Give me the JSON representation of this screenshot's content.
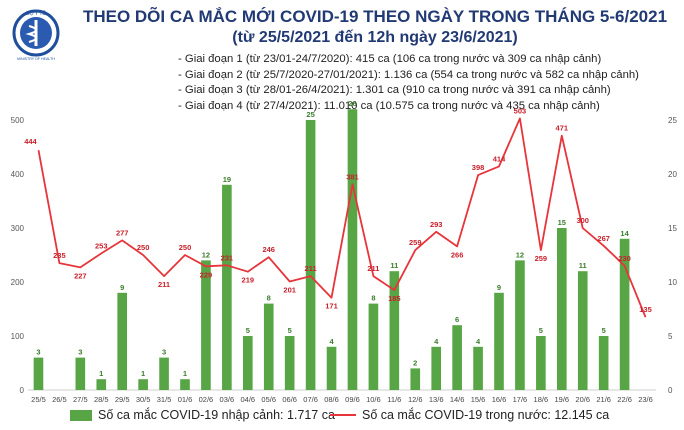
{
  "logo": {
    "top_text": "BỘ Y TẾ",
    "bottom_text": "MINISTRY OF HEALTH"
  },
  "title": "THEO DÕI CA MẮC MỚI COVID-19 THEO NGÀY TRONG THÁNG 5-6/2021",
  "subtitle": "(từ 25/5/2021 đến 12h ngày 23/6/2021)",
  "phases": [
    "- Giai đoạn 1 (từ 23/01-24/7/2020): 415 ca (106 ca trong nước và 309 ca nhập cảnh)",
    "- Giai đoạn 2 (từ 25/7/2020-27/01/2021): 1.136 ca (554 ca trong nước và 582 ca nhập cảnh)",
    "- Giai đoạn 3 (từ 28/01-26/4/2021): 1.301 ca (910 ca trong nước và 391 ca nhập cảnh)",
    "- Giai đoạn 4 (từ 27/4/2021): 11.010 ca (10.575 ca trong nước và 435 ca nhập cảnh)"
  ],
  "colors": {
    "bar": "#57a545",
    "line": "#e8343b",
    "title": "#223a74",
    "bar_label": "#3a7d2c",
    "line_label": "#c8202b"
  },
  "chart_data": {
    "type": "bar",
    "categories": [
      "25/5",
      "26/5",
      "27/5",
      "28/5",
      "29/5",
      "30/5",
      "31/5",
      "01/6",
      "02/6",
      "03/6",
      "04/6",
      "05/6",
      "06/6",
      "07/6",
      "08/6",
      "09/6",
      "10/6",
      "11/6",
      "12/6",
      "13/6",
      "14/6",
      "15/6",
      "16/6",
      "17/6",
      "18/6",
      "19/6",
      "20/6",
      "21/6",
      "22/6",
      "23/6"
    ],
    "left_axis": {
      "ylim": [
        0,
        500
      ],
      "ticks": [
        0,
        100,
        200,
        300,
        400,
        500
      ]
    },
    "right_axis": {
      "ylim": [
        0,
        25
      ],
      "ticks": [
        0,
        5,
        10,
        15,
        20,
        25
      ]
    },
    "series": [
      {
        "name": "Số ca mắc COVID-19 nhập cảnh: 1.717 ca",
        "type": "bar",
        "axis": "right",
        "values": [
          3,
          0,
          3,
          1,
          9,
          1,
          3,
          1,
          12,
          19,
          5,
          8,
          5,
          25,
          4,
          26,
          8,
          11,
          2,
          4,
          6,
          4,
          9,
          12,
          5,
          15,
          11,
          5,
          14,
          0
        ],
        "labels": [
          "3",
          "",
          "3",
          "1",
          "9",
          "1",
          "3",
          "1",
          "12",
          "19",
          "5",
          "8",
          "5",
          "25",
          "4",
          "26",
          "8",
          "11",
          "2",
          "4",
          "6",
          "4",
          "9",
          "12",
          "5",
          "15",
          "11",
          "5",
          "14",
          ""
        ]
      },
      {
        "name": "Số ca mắc COVID-19 trong nước: 12.145 ca",
        "type": "line",
        "axis": "left",
        "values": [
          444,
          235,
          227,
          253,
          277,
          250,
          211,
          250,
          229,
          231,
          219,
          246,
          201,
          211,
          171,
          381,
          211,
          185,
          259,
          293,
          266,
          398,
          414,
          503,
          259,
          471,
          300,
          267,
          230,
          135
        ],
        "labels": [
          "444",
          "235",
          "227",
          "253",
          "277",
          "250",
          "211",
          "250",
          "229",
          "231",
          "219",
          "246",
          "201",
          "211",
          "171",
          "381",
          "211",
          "185",
          "259",
          "293",
          "266",
          "398",
          "414",
          "503",
          "259",
          "471",
          "300",
          "267",
          "230",
          "135"
        ]
      }
    ]
  }
}
